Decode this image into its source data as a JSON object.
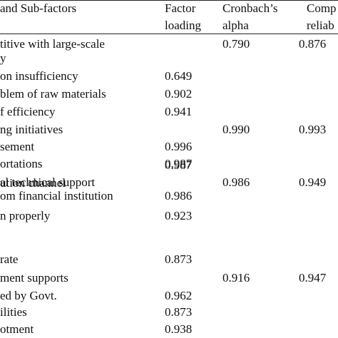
{
  "header": {
    "factors": "and Sub-factors",
    "loading_1": "Factor",
    "loading_2": "loading",
    "alpha_1": "Cronbach’s",
    "alpha_2": "alpha",
    "cr_1": "Comp",
    "cr_2": "reliab"
  },
  "rows": [
    {
      "factor": "titive     with     large-scale",
      "loading": "",
      "alpha": "0.790",
      "cr": "0.876"
    },
    {
      "factor": "y",
      "loading": "",
      "alpha": "",
      "cr": ""
    },
    {
      "factor": "on insufficiency",
      "loading": "0.649",
      "alpha": "",
      "cr": ""
    },
    {
      "factor": "blem of raw materials",
      "loading": "0.902",
      "alpha": "",
      "cr": ""
    },
    {
      "factor": "f efficiency",
      "loading": "0.941",
      "alpha": "",
      "cr": ""
    },
    {
      "factor": "ng initiatives",
      "loading": "",
      "alpha": "0.990",
      "cr": "0.993"
    },
    {
      "factor": "sement",
      "loading": "0.996",
      "alpha": "",
      "cr": ""
    },
    {
      "factor": "ortations",
      "loading": "0.987",
      "alpha": "",
      "cr": ""
    },
    {
      "factor": "ution channel",
      "loading": "0.987",
      "alpha": "",
      "cr": ""
    },
    {
      "factor": "al technical support",
      "loading": "",
      "alpha": "0.986",
      "cr": "0.949"
    },
    {
      "factor": "om financial institution",
      "loading": "0.986",
      "alpha": "",
      "cr": ""
    },
    {
      "factor": "n properly",
      "loading": "0.923",
      "alpha": "",
      "cr": ""
    },
    {
      "factor": "rate",
      "loading": "0.873",
      "alpha": "",
      "cr": ""
    },
    {
      "factor": "ment supports",
      "loading": "",
      "alpha": "0.916",
      "cr": "0.947"
    },
    {
      "factor": "ed by Govt.",
      "loading": "0.962",
      "alpha": "",
      "cr": ""
    },
    {
      "factor": "ilities",
      "loading": "0.873",
      "alpha": "",
      "cr": ""
    },
    {
      "factor": "otment",
      "loading": "0.938",
      "alpha": "",
      "cr": ""
    }
  ]
}
